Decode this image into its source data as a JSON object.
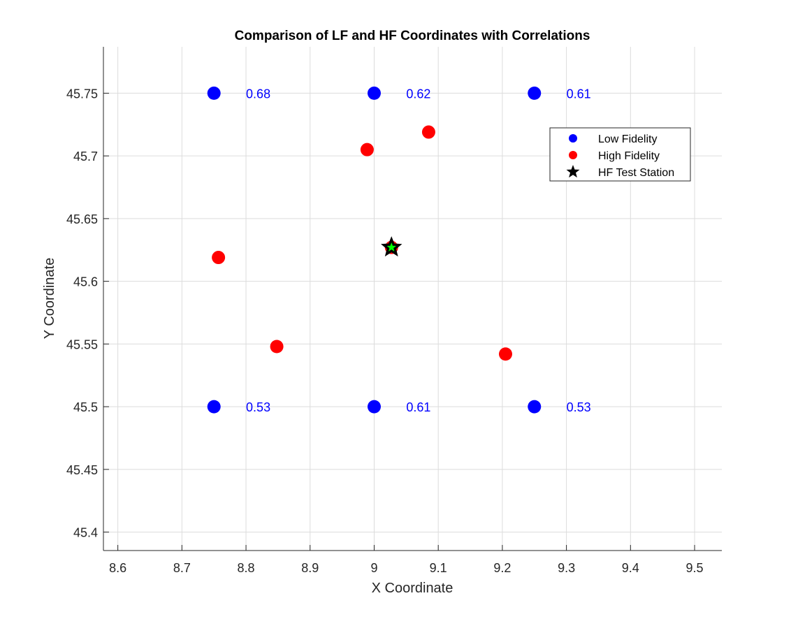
{
  "chart_data": {
    "type": "scatter",
    "title": "Comparison of LF and HF Coordinates with Correlations",
    "xlabel": "X Coordinate",
    "ylabel": "Y Coordinate",
    "xlim": [
      8.6,
      9.5
    ],
    "ylim": [
      45.4,
      45.75
    ],
    "x_ticks": [
      8.6,
      8.7,
      8.8,
      8.9,
      9,
      9.1,
      9.2,
      9.3,
      9.4,
      9.5
    ],
    "x_tick_labels": [
      "8.6",
      "8.7",
      "8.8",
      "8.9",
      "9",
      "9.1",
      "9.2",
      "9.3",
      "9.4",
      "9.5"
    ],
    "y_ticks": [
      45.4,
      45.45,
      45.5,
      45.55,
      45.6,
      45.65,
      45.7,
      45.75
    ],
    "y_tick_labels": [
      "45.4",
      "45.45",
      "45.5",
      "45.55",
      "45.6",
      "45.65",
      "45.7",
      "45.75"
    ],
    "grid": true,
    "legend_position": "top-right",
    "series": [
      {
        "name": "Low Fidelity",
        "color": "#0000ff",
        "marker": "circle",
        "points": [
          {
            "x": 8.75,
            "y": 45.75
          },
          {
            "x": 9.0,
            "y": 45.75
          },
          {
            "x": 9.25,
            "y": 45.75
          },
          {
            "x": 8.75,
            "y": 45.5
          },
          {
            "x": 9.0,
            "y": 45.5
          },
          {
            "x": 9.25,
            "y": 45.5
          }
        ]
      },
      {
        "name": "High Fidelity",
        "color": "#ff0000",
        "marker": "circle",
        "points": [
          {
            "x": 8.757,
            "y": 45.619
          },
          {
            "x": 8.848,
            "y": 45.548
          },
          {
            "x": 8.989,
            "y": 45.705
          },
          {
            "x": 9.085,
            "y": 45.719
          },
          {
            "x": 9.205,
            "y": 45.542
          },
          {
            "x": 9.027,
            "y": 45.627
          }
        ]
      },
      {
        "name": "HF Test Station",
        "color": "#000000",
        "inner_color": "#00ff00",
        "marker": "star",
        "points": [
          {
            "x": 9.027,
            "y": 45.627
          }
        ]
      }
    ],
    "annotations": [
      {
        "text": "0.68",
        "x": 8.8,
        "y": 45.75
      },
      {
        "text": "0.62",
        "x": 9.05,
        "y": 45.75
      },
      {
        "text": "0.61",
        "x": 9.3,
        "y": 45.75
      },
      {
        "text": "0.53",
        "x": 8.8,
        "y": 45.5
      },
      {
        "text": "0.61",
        "x": 9.05,
        "y": 45.5
      },
      {
        "text": "0.53",
        "x": 9.3,
        "y": 45.5
      }
    ],
    "annotation_color": "#0000ff"
  }
}
